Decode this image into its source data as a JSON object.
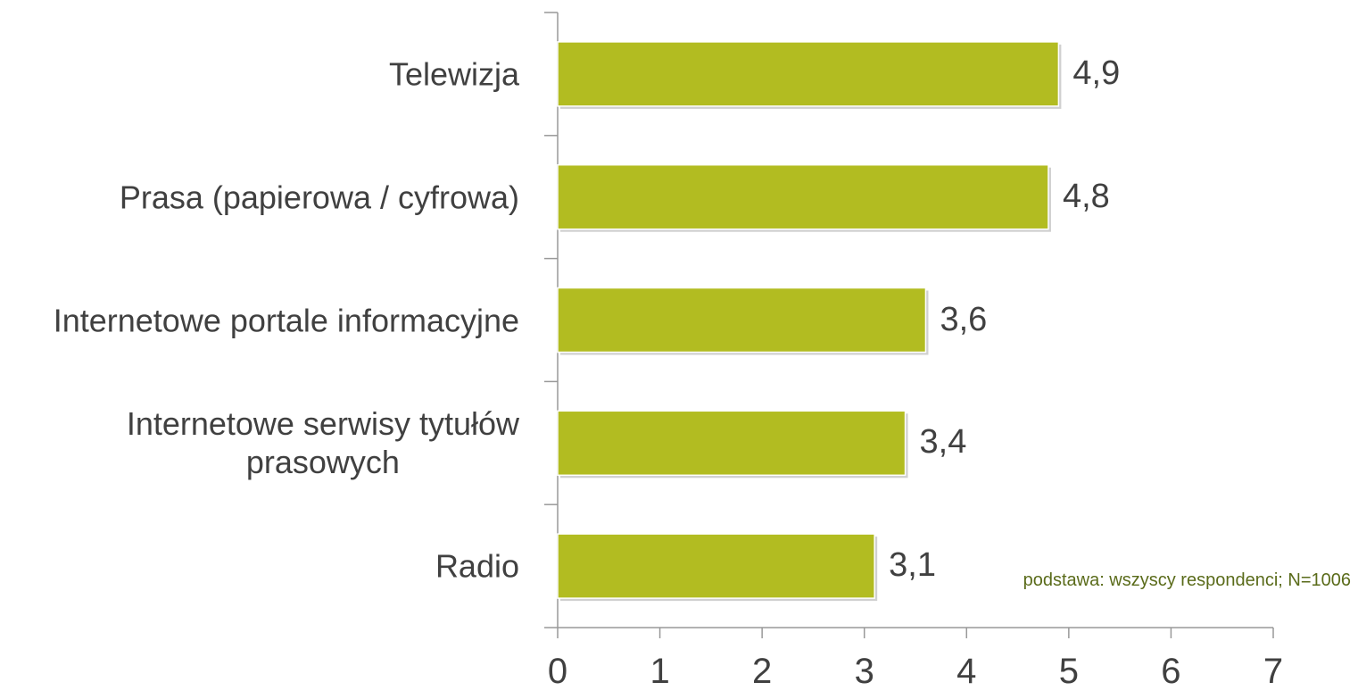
{
  "chart_data": {
    "type": "bar",
    "orientation": "horizontal",
    "categories": [
      "Telewizja",
      "Prasa (papierowa / cyfrowa)",
      "Internetowe portale informacyjne",
      "Internetowe serwisy tytułów\nprasowych",
      "Radio"
    ],
    "values": [
      4.9,
      4.8,
      3.6,
      3.4,
      3.1
    ],
    "value_labels": [
      "4,9",
      "4,8",
      "3,6",
      "3,4",
      "3,1"
    ],
    "color": "#b2bc21",
    "xlim": [
      0,
      7
    ],
    "xticks": [
      0,
      1,
      2,
      3,
      4,
      5,
      6,
      7
    ],
    "annotation": "podstawa: wszyscy respondenci; N=1006"
  }
}
